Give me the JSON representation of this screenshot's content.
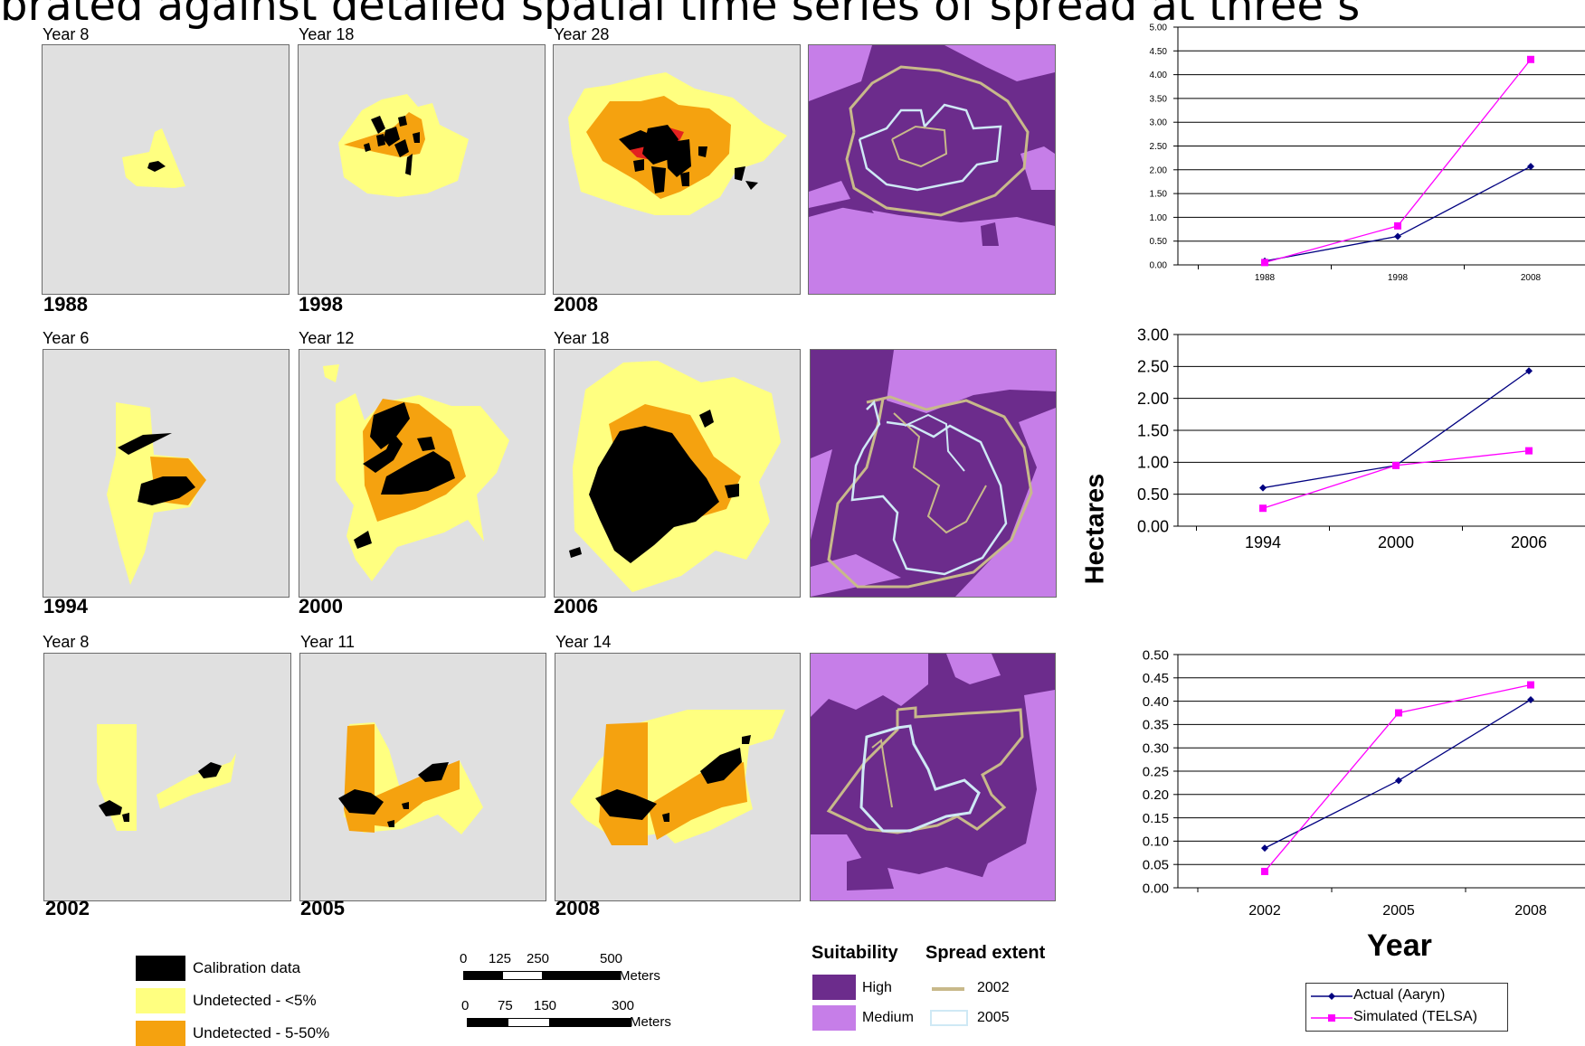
{
  "header": {
    "title_fragment": "brated against detailed spatial time series of spread at three s"
  },
  "rows": [
    {
      "panels": [
        {
          "year": "Year 8",
          "date": "1988"
        },
        {
          "year": "Year 18",
          "date": "1998"
        },
        {
          "year": "Year 28",
          "date": "2008"
        }
      ]
    },
    {
      "panels": [
        {
          "year": "Year 6",
          "date": "1994"
        },
        {
          "year": "Year 12",
          "date": "2000"
        },
        {
          "year": "Year 18",
          "date": "2006"
        }
      ]
    },
    {
      "panels": [
        {
          "year": "Year 8",
          "date": "2002"
        },
        {
          "year": "Year 11",
          "date": "2005"
        },
        {
          "year": "Year 14",
          "date": "2008"
        }
      ]
    }
  ],
  "map_legend": {
    "calibration": "Calibration data",
    "undetected_low": "Undetected - <5%",
    "undetected_mid": "Undetected - 5-50%",
    "scale1": {
      "ticks": [
        "0",
        "125",
        "250",
        "500"
      ],
      "unit": "Meters"
    },
    "scale2": {
      "ticks": [
        "0",
        "75",
        "150",
        "300"
      ],
      "unit": "Meters"
    },
    "suitability_title": "Suitability",
    "spread_title": "Spread extent",
    "high": "High",
    "medium": "Medium",
    "spread_2002": "2002",
    "spread_2005": "2005"
  },
  "colors": {
    "map_bg": "#e0e0e0",
    "undetected_low": "#ffff80",
    "undetected_mid": "#f5a20f",
    "detected_high": "#e32220",
    "calibration": "#000000",
    "suit_high": "#6c2c8c",
    "suit_medium": "#c67ee8",
    "spread_2002": "#c8b98a",
    "spread_2005": "#cfe9f5",
    "actual": "#000080",
    "simulated": "#ff00ff"
  },
  "axis_labels": {
    "ylabel": "Hectares",
    "xlabel": "Year"
  },
  "chart_legend": {
    "actual": "Actual (Aaryn)",
    "simulated": "Simulated (TELSA)"
  },
  "chart_data": [
    {
      "type": "line",
      "categories": [
        "1988",
        "1998",
        "2008"
      ],
      "ylim": [
        0,
        5
      ],
      "ytick_labels": [
        "0.00",
        "0.50",
        "1.00",
        "1.50",
        "2.00",
        "2.50",
        "3.00",
        "3.50",
        "4.00",
        "4.50",
        "5.00"
      ],
      "series": [
        {
          "name": "Actual (Aaryn)",
          "values": [
            0.08,
            0.6,
            2.07
          ]
        },
        {
          "name": "Simulated (TELSA)",
          "values": [
            0.05,
            0.82,
            4.32
          ]
        }
      ],
      "grid": true
    },
    {
      "type": "line",
      "categories": [
        "1994",
        "2000",
        "2006"
      ],
      "ylim": [
        0,
        3
      ],
      "ytick_labels": [
        "0.00",
        "0.50",
        "1.00",
        "1.50",
        "2.00",
        "2.50",
        "3.00"
      ],
      "series": [
        {
          "name": "Actual (Aaryn)",
          "values": [
            0.6,
            0.95,
            2.43
          ]
        },
        {
          "name": "Simulated (TELSA)",
          "values": [
            0.28,
            0.95,
            1.18
          ]
        }
      ],
      "grid": true
    },
    {
      "type": "line",
      "categories": [
        "2002",
        "2005",
        "2008"
      ],
      "ylim": [
        0,
        0.5
      ],
      "ytick_labels": [
        "0.00",
        "0.05",
        "0.10",
        "0.15",
        "0.20",
        "0.25",
        "0.30",
        "0.35",
        "0.40",
        "0.45",
        "0.50"
      ],
      "series": [
        {
          "name": "Actual (Aaryn)",
          "values": [
            0.085,
            0.23,
            0.403
          ]
        },
        {
          "name": "Simulated (TELSA)",
          "values": [
            0.035,
            0.375,
            0.435
          ]
        }
      ],
      "grid": true
    }
  ]
}
